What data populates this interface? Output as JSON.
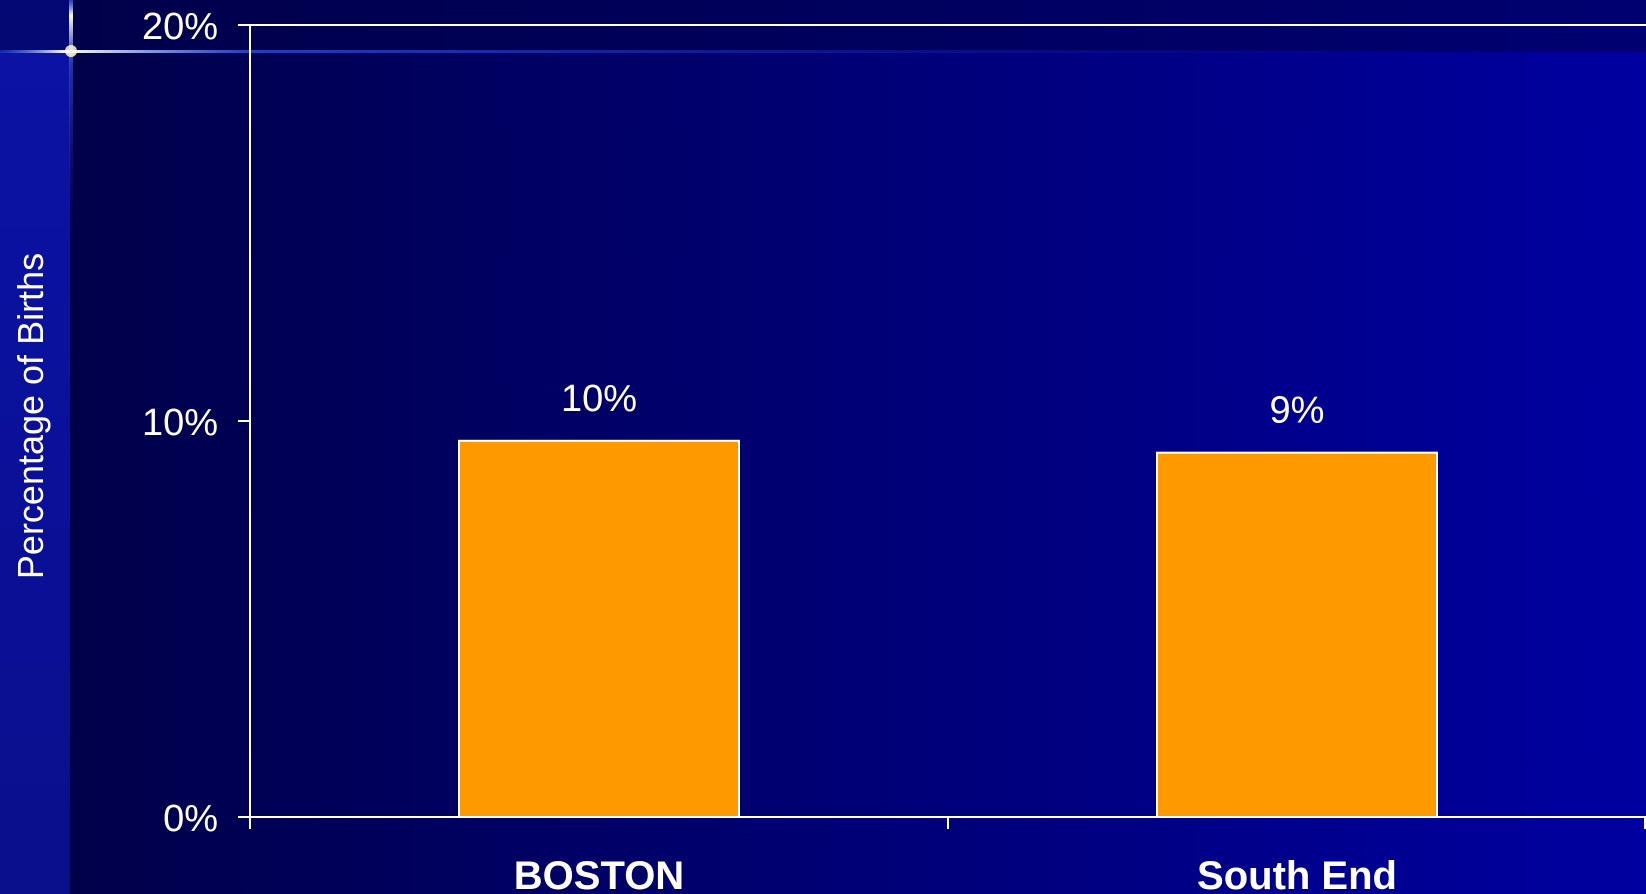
{
  "chart_data": {
    "type": "bar",
    "categories": [
      "BOSTON",
      "South End"
    ],
    "values": [
      9.5,
      9.2
    ],
    "data_labels": [
      "10%",
      "9%"
    ],
    "ylabel": "Percentage of Births",
    "xlabel": "",
    "ylim": [
      0,
      20
    ],
    "yticks": [
      0,
      10,
      20
    ],
    "ytick_labels": [
      "0%",
      "10%",
      "20%"
    ],
    "grid": false,
    "legend": "none",
    "colors": {
      "bar": "#ff9900",
      "bar_edge": "#ffffff",
      "axis": "#ffffff",
      "text": "#ffffff",
      "plot_bg_dark": "#00004a",
      "plot_bg_light": "#0000a0",
      "slide_left_band": "#0a0f8c"
    }
  }
}
